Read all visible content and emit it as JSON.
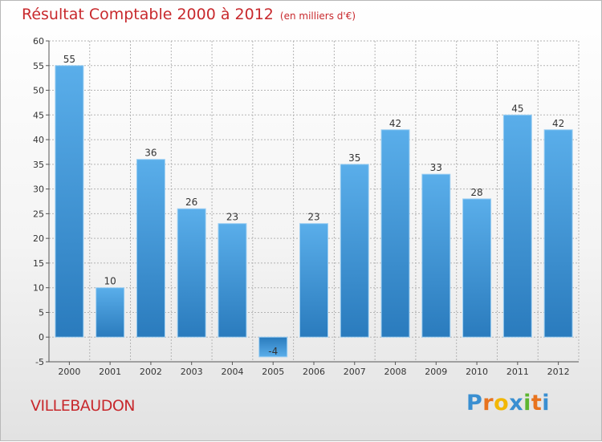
{
  "header": {
    "title": "Résultat Comptable 2000 à 2012",
    "subtitle": "(en milliers d'€)"
  },
  "footer": {
    "location": "VILLEBAUDON",
    "brand": "Proxiti",
    "brand_letters": [
      "P",
      "r",
      "o",
      "x",
      "i",
      "t",
      "i"
    ],
    "brand_colors": [
      "#3a8fd1",
      "#e8731e",
      "#f2b705",
      "#3a8fd1",
      "#5cb531",
      "#e8731e",
      "#3a8fd1"
    ]
  },
  "colors": {
    "title": "#c8292d",
    "bar_top": "#5aaeea",
    "bar_bottom": "#2a7bbd",
    "grid": "#b4b4b4"
  },
  "chart_data": {
    "type": "bar",
    "title": "Résultat Comptable 2000 à 2012",
    "unit_note": "(en milliers d'€)",
    "categories": [
      "2000",
      "2001",
      "2002",
      "2003",
      "2004",
      "2005",
      "2006",
      "2007",
      "2008",
      "2009",
      "2010",
      "2011",
      "2012"
    ],
    "values": [
      55,
      10,
      36,
      26,
      23,
      -4,
      23,
      35,
      42,
      33,
      28,
      45,
      42
    ],
    "value_labels": [
      "55",
      "10",
      "36",
      "26",
      "23",
      "-4",
      "23",
      "35",
      "42",
      "33",
      "28",
      "45",
      "42"
    ],
    "ylim": [
      -5,
      60
    ],
    "yticks": [
      -5,
      0,
      5,
      10,
      15,
      20,
      25,
      30,
      35,
      40,
      45,
      50,
      55,
      60
    ],
    "grid": true,
    "xlabel": "",
    "ylabel": ""
  }
}
